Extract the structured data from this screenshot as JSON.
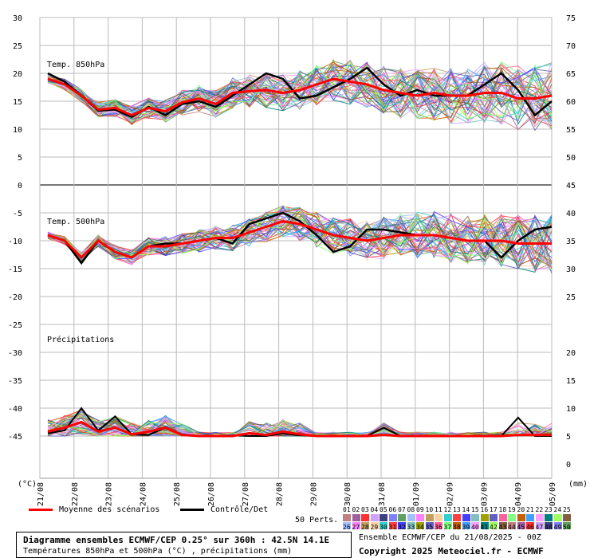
{
  "chart_data": {
    "type": "line",
    "title": "Diagramme ensembles ECMWF/CEP 0.25° sur 360h : 42.5N 14.1E",
    "subtitle": "Températures 850hPa et 500hPa (°C) , précipitations (mm)",
    "run_info": "Ensemble ECMWF/CEP du 21/08/2025 - 00Z",
    "copyright": "Copyright 2025 Meteociel.fr - ECMWF",
    "x_dates": [
      "21/08",
      "22/08",
      "23/08",
      "24/08",
      "25/08",
      "26/08",
      "27/08",
      "28/08",
      "29/08",
      "30/08",
      "31/08",
      "01/09",
      "02/09",
      "03/09",
      "04/09",
      "05/09"
    ],
    "left_axis_label": "(°C)",
    "right_axis_label": "(mm)",
    "left_ticks": [
      "30",
      "25",
      "20",
      "15",
      "10",
      "5",
      "0",
      "-5",
      "-10",
      "-15",
      "-20",
      "-25",
      "-30",
      "-35",
      "-40",
      "-45"
    ],
    "right_ticks_t850": [
      "75",
      "70",
      "65",
      "60",
      "55",
      "50",
      "45"
    ],
    "right_ticks_t500": [
      "40",
      "35",
      "30",
      "25"
    ],
    "right_ticks_precip": [
      "20",
      "15",
      "10",
      "5",
      "0"
    ],
    "panels": {
      "t850": {
        "label": "Temp. 850hPa",
        "mean": [
          19,
          18,
          16,
          13.5,
          13.8,
          12.5,
          13.8,
          13.2,
          14.8,
          15.5,
          14.5,
          16.5,
          16.8,
          17,
          16.5,
          17,
          18,
          19,
          18.5,
          18,
          17,
          16.5,
          16,
          16.5,
          16,
          16,
          16.5,
          16.5,
          15.5,
          15.5,
          16
        ],
        "control": [
          20,
          18.5,
          16,
          13.3,
          13.5,
          12.2,
          14,
          12.5,
          14.5,
          15,
          14,
          16,
          18,
          20,
          19,
          15.5,
          16,
          17.5,
          19,
          21,
          18,
          16,
          17,
          16,
          16,
          16,
          18,
          20,
          17,
          12.5,
          15
        ]
      },
      "t500": {
        "label": "Temp. 500hPa",
        "mean": [
          -9,
          -10,
          -13,
          -10,
          -12,
          -13,
          -11,
          -11,
          -10.5,
          -10,
          -9.5,
          -9.5,
          -8.5,
          -7.5,
          -6.5,
          -7,
          -8,
          -9,
          -9.5,
          -10,
          -9.5,
          -9,
          -9,
          -9,
          -9.5,
          -10,
          -10,
          -10,
          -10.5,
          -10.5,
          -10.5
        ],
        "control": [
          -9,
          -10,
          -14,
          -10,
          -12,
          -13,
          -11,
          -10.5,
          -10.5,
          -10,
          -9.5,
          -10.5,
          -7,
          -6,
          -5,
          -6.5,
          -9,
          -12,
          -11,
          -8,
          -8,
          -8.5,
          -9,
          -9,
          -9.5,
          -10,
          -10,
          -13,
          -10,
          -8,
          -7.5
        ]
      },
      "precip": {
        "label": "Précipitations",
        "mean": [
          0.8,
          1.5,
          2.5,
          0.8,
          1.5,
          0.3,
          0.8,
          1.5,
          0.2,
          0,
          0,
          0,
          0.5,
          0.2,
          0.8,
          0.3,
          0,
          0,
          0,
          0,
          0.2,
          0,
          0,
          0,
          0,
          0,
          0,
          0,
          0.2,
          0.2,
          0.2
        ],
        "control": [
          0.5,
          1,
          5,
          1,
          3.5,
          0.3,
          0.2,
          1.5,
          0.3,
          0,
          0,
          0.1,
          0,
          0,
          0.5,
          0.1,
          0,
          0,
          0,
          0,
          1.5,
          0,
          0,
          0,
          0,
          0,
          0,
          0,
          3.3,
          0,
          0
        ]
      }
    },
    "legend": {
      "mean_label": "Moyenne des scénarios",
      "control_label": "Contrôle/Det",
      "perts_label": "50 Perts.",
      "mean_color": "#ff0000",
      "control_color": "#000000"
    },
    "member_numbers_row1": [
      "01",
      "02",
      "03",
      "04",
      "05",
      "06",
      "07",
      "08",
      "09",
      "10",
      "11",
      "12",
      "13",
      "14",
      "15",
      "16",
      "17",
      "18",
      "19",
      "20",
      "21",
      "22",
      "23",
      "24",
      "25"
    ],
    "member_numbers_row2": [
      "26",
      "27",
      "28",
      "29",
      "30",
      "31",
      "32",
      "33",
      "34",
      "35",
      "36",
      "37",
      "38",
      "39",
      "40",
      "41",
      "42",
      "43",
      "44",
      "45",
      "46",
      "47",
      "48",
      "49",
      "50"
    ],
    "member_colors": [
      "#c08080",
      "#a060a0",
      "#ff3030",
      "#d0a0ff",
      "#404080",
      "#8080ff",
      "#60a060",
      "#a0c0ff",
      "#ff80ff",
      "#c0a060",
      "#ffd0a0",
      "#30d0d0",
      "#ff4040",
      "#4040ff",
      "#80c0c0",
      "#a0a000",
      "#6060c0",
      "#ff60a0",
      "#80ff80",
      "#c06000",
      "#40a0ff",
      "#ffa0ff",
      "#008080",
      "#a0ff60",
      "#806040"
    ]
  }
}
